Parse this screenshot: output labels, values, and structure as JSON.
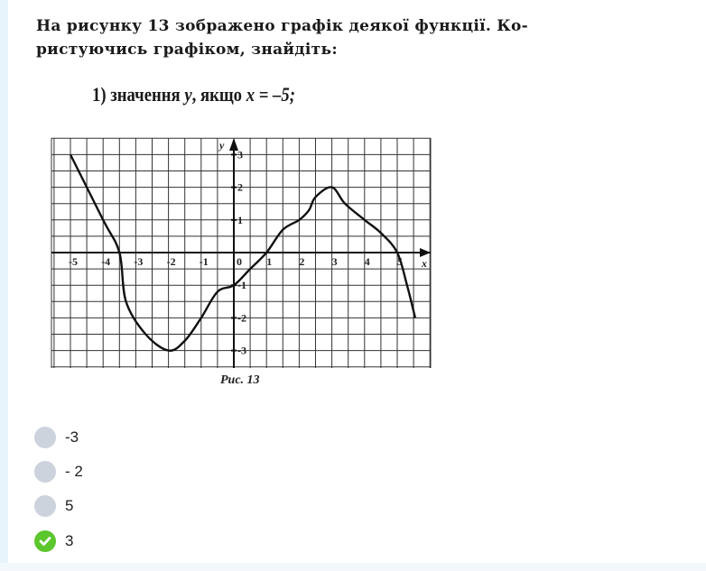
{
  "question": {
    "line1": "На рисунку 13 зображено графік деякої функції. Ко-",
    "line2": "ристуючись графіком, знайдіть:",
    "sub_prefix": "1) значення ",
    "sub_var_y": "y",
    "sub_middle": ", якщо ",
    "sub_expr": "x = –5;",
    "caption": "Рис. 13"
  },
  "chart_data": {
    "type": "line",
    "xlabel": "x",
    "ylabel": "y",
    "xlim": [
      -5.5,
      6
    ],
    "ylim": [
      -3.5,
      3.5
    ],
    "grid": true,
    "grid_step": 0.5,
    "x_ticks": [
      "-5",
      "-4",
      "-3",
      "-2",
      "-1",
      "0",
      "1",
      "2",
      "3",
      "4",
      "5"
    ],
    "y_ticks": [
      "3",
      "2",
      "1",
      "-1",
      "-2",
      "-3"
    ],
    "points": [
      [
        -5,
        3
      ],
      [
        -4,
        1
      ],
      [
        -3.5,
        0
      ],
      [
        -3.3,
        -1.5
      ],
      [
        -2.7,
        -2.5
      ],
      [
        -2,
        -3
      ],
      [
        -1.5,
        -2.7
      ],
      [
        -1,
        -2
      ],
      [
        -0.5,
        -1.2
      ],
      [
        0,
        -1
      ],
      [
        0.5,
        -0.5
      ],
      [
        1,
        0
      ],
      [
        1.5,
        0.7
      ],
      [
        2,
        1
      ],
      [
        2.3,
        1.3
      ],
      [
        2.5,
        1.7
      ],
      [
        3,
        2
      ],
      [
        3.4,
        1.5
      ],
      [
        4,
        1
      ],
      [
        4.5,
        0.6
      ],
      [
        5,
        0
      ],
      [
        5.3,
        -1
      ],
      [
        5.55,
        -2
      ]
    ],
    "line_color": "#111111"
  },
  "options": [
    {
      "label": "-3",
      "state": "unselected"
    },
    {
      "label": "- 2",
      "state": "unselected"
    },
    {
      "label": "5",
      "state": "unselected"
    },
    {
      "label": "3",
      "state": "correct"
    }
  ],
  "colors": {
    "correct": "#5cc62d",
    "radio": "#cdd3dd"
  }
}
